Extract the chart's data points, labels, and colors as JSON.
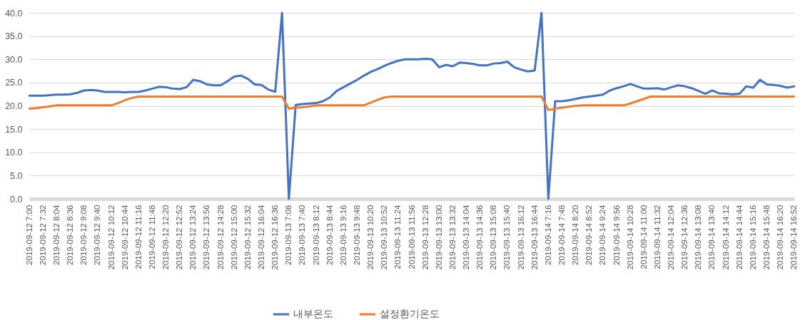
{
  "chart_data": {
    "type": "line",
    "categories": [
      "2019-09-12 7:00",
      null,
      "2019-09-12 7:32",
      null,
      "2019-09-12 8:04",
      null,
      "2019-09-12 8:36",
      null,
      "2019-09-12 9:08",
      null,
      "2019-09-12 9:40",
      null,
      "2019-09-12 10:12",
      null,
      "2019-09-12 10:44",
      null,
      "2019-09-12 11:16",
      null,
      "2019-09-12 11:48",
      null,
      "2019-09-12 12:20",
      null,
      "2019-09-12 12:52",
      null,
      "2019-09-12 13:24",
      null,
      "2019-09-12 13:56",
      null,
      "2019-09-12 14:28",
      null,
      "2019-09-12 15:00",
      null,
      "2019-09-12 15:32",
      null,
      "2019-09-12 16:04",
      null,
      "2019-09-12 16:36",
      null,
      "2019-09-13 7:08",
      null,
      "2019-09-13 7:40",
      null,
      "2019-09-13 8:12",
      null,
      "2019-09-13 8:44",
      null,
      "2019-09-13 9:16",
      null,
      "2019-09-13 9:48",
      null,
      "2019-09-13 10:20",
      null,
      "2019-09-13 10:52",
      null,
      "2019-09-13 11:24",
      null,
      "2019-09-13 11:56",
      null,
      "2019-09-13 12:28",
      null,
      "2019-09-13 13:00",
      null,
      "2019-09-13 13:32",
      null,
      "2019-09-13 14:04",
      null,
      "2019-09-13 14:36",
      null,
      "2019-09-13 15:08",
      null,
      "2019-09-13 15:40",
      null,
      "2019-09-13 16:12",
      null,
      "2019-09-13 16:44",
      null,
      "2019-09-14 7:16",
      null,
      "2019-09-14 7:48",
      null,
      "2019-09-14 8:20",
      null,
      "2019-09-14 8:52",
      null,
      "2019-09-14 9:24",
      null,
      "2019-09-14 9:56",
      null,
      "2019-09-14 10:28",
      null,
      "2019-09-14 11:00",
      null,
      "2019-09-14 11:32",
      null,
      "2019-09-14 12:04",
      null,
      "2019-09-14 12:36",
      null,
      "2019-09-14 13:08",
      null,
      "2019-09-14 13:40",
      null,
      "2019-09-14 14:12",
      null,
      "2019-09-14 14:44",
      null,
      "2019-09-14 15:16",
      null,
      "2019-09-14 15:48",
      null,
      "2019-09-14 16:20",
      null,
      "2019-09-14 16:52"
    ],
    "series": [
      {
        "name": "내부온도",
        "color": "#4472c4",
        "values": [
          22.2,
          22.2,
          22.2,
          22.3,
          22.4,
          22.4,
          22.5,
          22.8,
          23.3,
          23.4,
          23.3,
          23.0,
          23.0,
          23.0,
          22.9,
          23.0,
          23.0,
          23.3,
          23.7,
          24.1,
          24.0,
          23.7,
          23.6,
          24.0,
          25.6,
          25.3,
          24.6,
          24.4,
          24.4,
          25.3,
          26.3,
          26.5,
          25.8,
          24.6,
          24.5,
          23.5,
          23.0,
          40.0,
          0.0,
          20.2,
          20.4,
          20.5,
          20.6,
          21.0,
          21.8,
          23.2,
          24.0,
          24.8,
          25.6,
          26.5,
          27.3,
          27.9,
          28.6,
          29.2,
          29.7,
          30.0,
          30.0,
          30.0,
          30.1,
          30.0,
          28.3,
          28.8,
          28.5,
          29.3,
          29.2,
          29.0,
          28.7,
          28.7,
          29.1,
          29.2,
          29.5,
          28.3,
          27.8,
          27.4,
          27.6,
          40.0,
          0.0,
          21.0,
          21.0,
          21.2,
          21.5,
          21.8,
          22.0,
          22.2,
          22.4,
          23.3,
          23.8,
          24.2,
          24.7,
          24.2,
          23.7,
          23.7,
          23.8,
          23.5,
          24.0,
          24.4,
          24.2,
          23.8,
          23.2,
          22.6,
          23.3,
          22.7,
          22.6,
          22.5,
          22.6,
          24.2,
          23.9,
          25.6,
          24.6,
          24.5,
          24.3,
          23.9,
          24.2
        ]
      },
      {
        "name": "설정환기온도",
        "color": "#ed7d31",
        "values": [
          19.4,
          19.5,
          19.7,
          19.9,
          20.1,
          20.1,
          20.1,
          20.1,
          20.1,
          20.1,
          20.1,
          20.1,
          20.1,
          20.6,
          21.2,
          21.7,
          22.0,
          22.0,
          22.0,
          22.0,
          22.0,
          22.0,
          22.0,
          22.0,
          22.0,
          22.0,
          22.0,
          22.0,
          22.0,
          22.0,
          22.0,
          22.0,
          22.0,
          22.0,
          22.0,
          22.0,
          22.0,
          22.0,
          19.4,
          19.6,
          19.7,
          19.9,
          20.1,
          20.1,
          20.1,
          20.1,
          20.1,
          20.1,
          20.1,
          20.1,
          20.7,
          21.3,
          21.8,
          22.0,
          22.0,
          22.0,
          22.0,
          22.0,
          22.0,
          22.0,
          22.0,
          22.0,
          22.0,
          22.0,
          22.0,
          22.0,
          22.0,
          22.0,
          22.0,
          22.0,
          22.0,
          22.0,
          22.0,
          22.0,
          22.0,
          22.0,
          19.1,
          19.4,
          19.6,
          19.8,
          20.0,
          20.1,
          20.1,
          20.1,
          20.1,
          20.1,
          20.1,
          20.1,
          20.5,
          21.0,
          21.5,
          22.0,
          22.0,
          22.0,
          22.0,
          22.0,
          22.0,
          22.0,
          22.0,
          22.0,
          22.0,
          22.0,
          22.0,
          22.0,
          22.0,
          22.0,
          22.0,
          22.0,
          22.0,
          22.0,
          22.0,
          22.0,
          22.0
        ]
      }
    ],
    "ylim": [
      0,
      40
    ],
    "yticks": [
      {
        "value": 0,
        "label": "0.0"
      },
      {
        "value": 5,
        "label": "5.0"
      },
      {
        "value": 10,
        "label": "10.0"
      },
      {
        "value": 15,
        "label": "15.0"
      },
      {
        "value": 20,
        "label": "20.0"
      },
      {
        "value": 25,
        "label": "25.0"
      },
      {
        "value": 30,
        "label": "30.0"
      },
      {
        "value": 35,
        "label": "35.0"
      },
      {
        "value": 40,
        "label": "40.0"
      }
    ],
    "grid": "y",
    "legend": "bottom",
    "marker": "none",
    "line_style": "solid"
  }
}
